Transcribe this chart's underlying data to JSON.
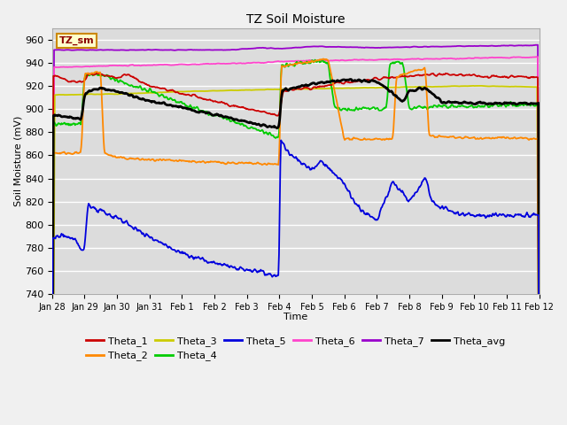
{
  "title": "TZ Soil Moisture",
  "xlabel": "Time",
  "ylabel": "Soil Moisture (mV)",
  "ylim": [
    740,
    970
  ],
  "yticks": [
    740,
    760,
    780,
    800,
    820,
    840,
    860,
    880,
    900,
    920,
    940,
    960
  ],
  "xtick_labels": [
    "Jan 28",
    "Jan 29",
    "Jan 30",
    "Jan 31",
    "Feb 1",
    "Feb 2",
    "Feb 3",
    "Feb 4",
    "Feb 5",
    "Feb 6",
    "Feb 7",
    "Feb 8",
    "Feb 9",
    "Feb 10",
    "Feb 11",
    "Feb 12"
  ],
  "label_box": "TZ_sm",
  "bg_color": "#dcdcdc",
  "colors": {
    "Theta_1": "#cc0000",
    "Theta_2": "#ff8800",
    "Theta_3": "#cccc00",
    "Theta_4": "#00cc00",
    "Theta_5": "#0000dd",
    "Theta_6": "#ff44cc",
    "Theta_7": "#9900cc",
    "Theta_avg": "#000000"
  },
  "legend_row1": [
    "Theta_1",
    "Theta_2",
    "Theta_3",
    "Theta_4",
    "Theta_5",
    "Theta_6"
  ],
  "legend_row2": [
    "Theta_7",
    "Theta_avg"
  ]
}
